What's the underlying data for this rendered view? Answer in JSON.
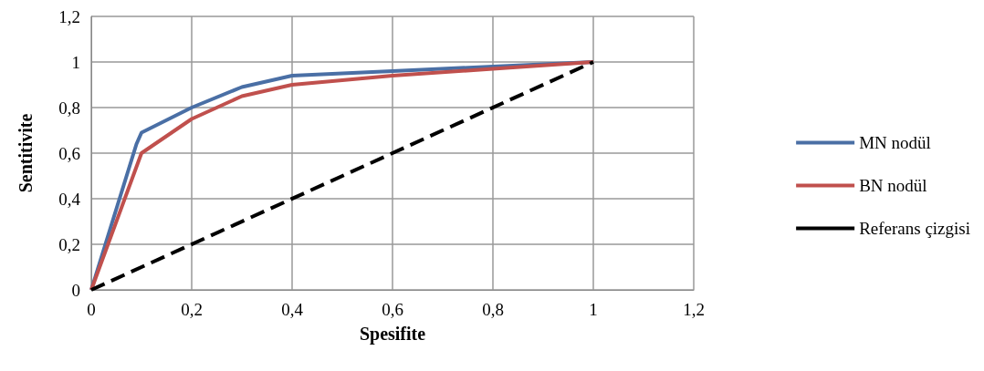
{
  "chart_data": {
    "type": "line",
    "xlabel": "Spesifite",
    "ylabel": "Sentitivite",
    "xlim": [
      0,
      1.2
    ],
    "ylim": [
      0,
      1.2
    ],
    "xticks": [
      0,
      {
        "value": 0.2,
        "label": "0,2"
      },
      {
        "value": 0.4,
        "label": "0,4"
      },
      {
        "value": 0.6,
        "label": "0,6"
      },
      {
        "value": 0.8,
        "label": "0,8"
      },
      1,
      {
        "value": 1.2,
        "label": "1,2"
      }
    ],
    "yticks": [
      0,
      {
        "value": 0.2,
        "label": "0,2"
      },
      {
        "value": 0.4,
        "label": "0,4"
      },
      {
        "value": 0.6,
        "label": "0,6"
      },
      {
        "value": 0.8,
        "label": "0,8"
      },
      1,
      {
        "value": 1.2,
        "label": "1,2"
      }
    ],
    "grid": true,
    "legend": "right",
    "marker": "none",
    "series": [
      {
        "name": "MN nodül",
        "color": "#4a6fa5",
        "x": [
          0,
          0.09,
          0.1,
          0.2,
          0.3,
          0.4,
          0.6,
          0.8,
          1
        ],
        "values": [
          0,
          0.64,
          0.69,
          0.8,
          0.89,
          0.94,
          0.96,
          0.98,
          1
        ]
      },
      {
        "name": "BN nodül",
        "color": "#c0504d",
        "x": [
          0,
          0.1,
          0.2,
          0.3,
          0.4,
          0.6,
          0.8,
          1
        ],
        "values": [
          0,
          0.6,
          0.75,
          0.85,
          0.9,
          0.94,
          0.97,
          1
        ]
      },
      {
        "name": "Referans çizgisi",
        "color": "#000000",
        "line_style": "dashed",
        "x": [
          0,
          1
        ],
        "values": [
          0,
          1
        ]
      }
    ]
  }
}
